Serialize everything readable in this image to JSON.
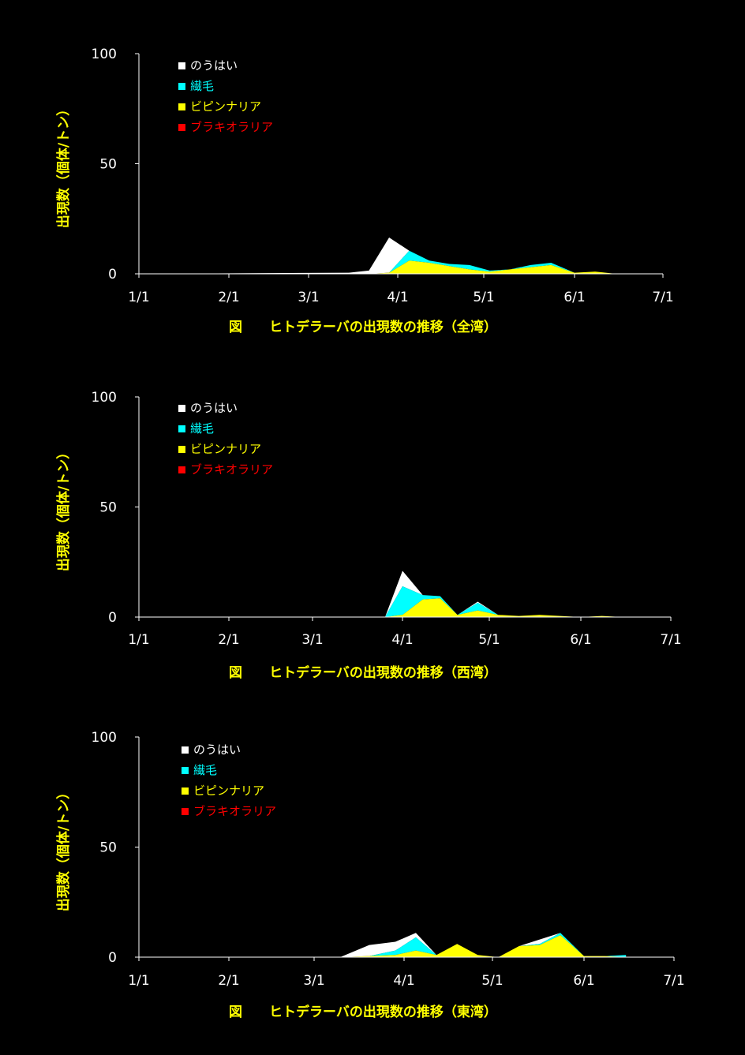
{
  "chart_data": [
    {
      "type": "area",
      "stacked": true,
      "title": "図　　ヒトデラーバの出現数の推移（全湾）",
      "ylabel": "出現数（個体/トン）",
      "xlabel": "",
      "ylim": [
        0,
        100
      ],
      "y_ticks": [
        "0",
        "50",
        "100"
      ],
      "x_tick_labels": [
        "1/1",
        "2/1",
        "3/1",
        "4/1",
        "5/1",
        "6/1",
        "7/1"
      ],
      "x_dates": [
        "01-01",
        "03-15",
        "03-22",
        "03-29",
        "04-05",
        "04-12",
        "04-19",
        "04-26",
        "05-03",
        "05-10",
        "05-17",
        "05-24",
        "06-01",
        "06-08",
        "06-15"
      ],
      "legend_position": "top-left",
      "series": [
        {
          "name": "ブラキオラリア",
          "color": "#ff0000",
          "values": [
            0,
            0,
            0,
            0,
            0,
            0,
            0,
            0,
            0,
            0,
            0,
            0,
            0,
            0,
            0
          ]
        },
        {
          "name": "ビピンナリア",
          "color": "#ffff00",
          "values": [
            0,
            0,
            0,
            0.5,
            6,
            5,
            3.5,
            2,
            1,
            2,
            3,
            4,
            0.5,
            1,
            0
          ]
        },
        {
          "name": "繊毛",
          "color": "#00ffff",
          "values": [
            0,
            0,
            0,
            0,
            4.5,
            1,
            1,
            2,
            0.5,
            0,
            1,
            1,
            0,
            0,
            0
          ]
        },
        {
          "name": "のうはい",
          "color": "#ffffff",
          "values": [
            0,
            0.5,
            1.5,
            16,
            0,
            0,
            0,
            0,
            0,
            0,
            0,
            0,
            0,
            0,
            0
          ]
        }
      ]
    },
    {
      "type": "area",
      "stacked": true,
      "title": "図　　ヒトデラーバの出現数の推移（西湾）",
      "ylabel": "出現数（個体/トン）",
      "xlabel": "",
      "ylim": [
        0,
        100
      ],
      "y_ticks": [
        "0",
        "50",
        "100"
      ],
      "x_tick_labels": [
        "1/1",
        "2/1",
        "3/1",
        "4/1",
        "5/1",
        "6/1",
        "7/1"
      ],
      "x_dates": [
        "01-01",
        "03-26",
        "04-01",
        "04-08",
        "04-14",
        "04-20",
        "04-27",
        "05-04",
        "05-11",
        "05-18",
        "05-25",
        "06-01",
        "06-08",
        "06-15"
      ],
      "legend_position": "top-left",
      "series": [
        {
          "name": "ブラキオラリア",
          "color": "#ff0000",
          "values": [
            0,
            0,
            0,
            0,
            0,
            0,
            0,
            0,
            0,
            0,
            0,
            0,
            0,
            0
          ]
        },
        {
          "name": "ビピンナリア",
          "color": "#ffff00",
          "values": [
            0,
            0,
            1,
            8,
            8.5,
            1,
            3,
            1,
            0.5,
            1,
            0.5,
            0,
            0.5,
            0
          ]
        },
        {
          "name": "繊毛",
          "color": "#00ffff",
          "values": [
            0,
            0,
            13,
            2,
            1,
            0,
            3.5,
            0,
            0,
            0,
            0,
            0,
            0,
            0
          ]
        },
        {
          "name": "のうはい",
          "color": "#ffffff",
          "values": [
            0,
            0,
            7,
            0,
            0,
            0,
            0.5,
            0,
            0,
            0,
            0,
            0,
            0,
            0
          ]
        }
      ]
    },
    {
      "type": "area",
      "stacked": true,
      "title": "図　　ヒトデラーバの出現数の推移（東湾）",
      "ylabel": "出現数（個体/トン）",
      "xlabel": "",
      "ylim": [
        0,
        100
      ],
      "y_ticks": [
        "0",
        "50",
        "100"
      ],
      "x_tick_labels": [
        "1/1",
        "2/1",
        "3/1",
        "4/1",
        "5/1",
        "6/1",
        "7/1"
      ],
      "x_dates": [
        "01-01",
        "03-10",
        "03-20",
        "03-29",
        "04-05",
        "04-12",
        "04-19",
        "04-26",
        "05-03",
        "05-10",
        "05-17",
        "05-24",
        "06-01",
        "06-08",
        "06-15"
      ],
      "legend_position": "top-left",
      "series": [
        {
          "name": "ブラキオラリア",
          "color": "#ff0000",
          "values": [
            0,
            0,
            0,
            0,
            0,
            0,
            0,
            0,
            0,
            0,
            0,
            0,
            0,
            0,
            0
          ]
        },
        {
          "name": "ビピンナリア",
          "color": "#ffff00",
          "values": [
            0,
            0,
            0.5,
            1,
            3,
            1,
            6,
            1,
            0,
            5,
            5.5,
            10,
            0.5,
            0.5,
            0
          ]
        },
        {
          "name": "繊毛",
          "color": "#00ffff",
          "values": [
            0,
            0,
            0,
            2,
            6,
            0,
            0,
            0,
            0,
            0,
            0.5,
            1,
            0,
            0,
            1
          ]
        },
        {
          "name": "のうはい",
          "color": "#ffffff",
          "values": [
            0,
            0,
            5,
            4,
            2,
            0,
            0,
            0,
            0,
            0,
            2,
            0,
            0,
            0,
            0
          ]
        }
      ]
    }
  ]
}
